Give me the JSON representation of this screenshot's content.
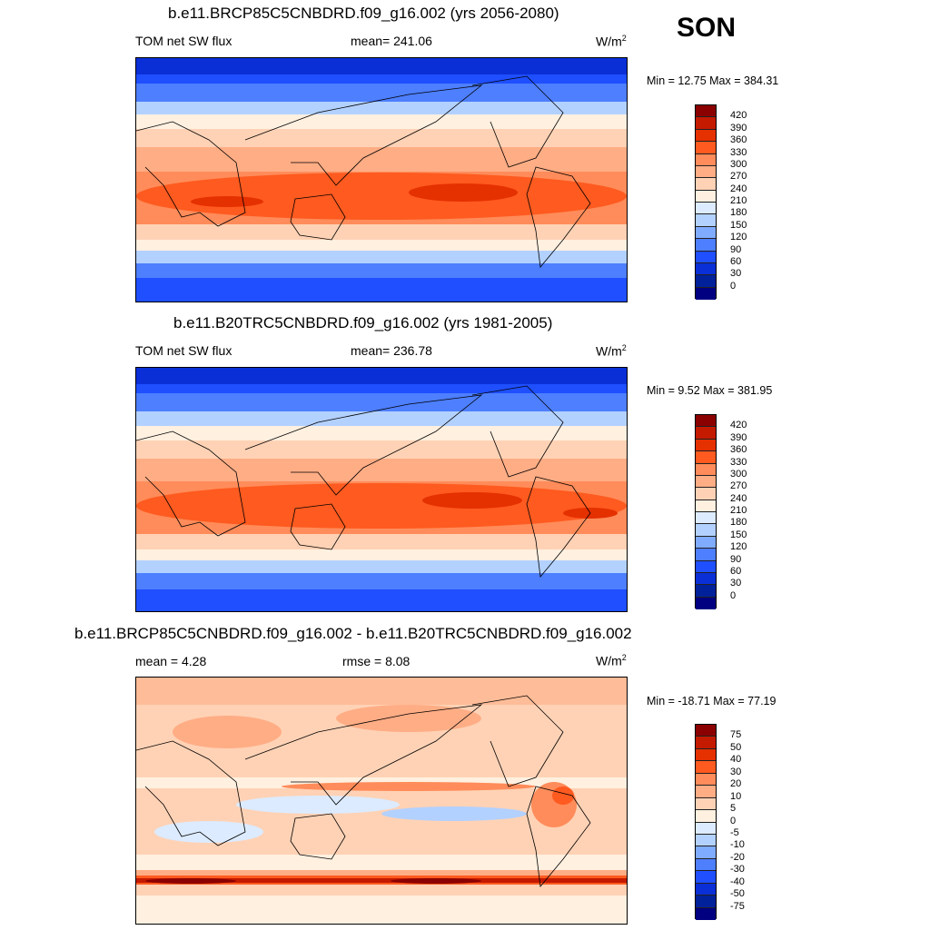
{
  "season": "SON",
  "panels": [
    {
      "title": "b.e11.BRCP85C5CNBDRD.f09_g16.002 (yrs 2056-2080)",
      "left_label": "TOM net SW flux",
      "mid_label": "mean= 241.06",
      "units": "W/m",
      "units_sup": "2",
      "minmax": "Min =  12.75 Max = 384.31",
      "colorbar": {
        "ticks": [
          "420",
          "390",
          "360",
          "330",
          "300",
          "270",
          "240",
          "210",
          "180",
          "150",
          "120",
          "90",
          "60",
          "30",
          "0"
        ],
        "colors": [
          "#8b0000",
          "#c41a00",
          "#e53000",
          "#ff5a1f",
          "#ff8c5a",
          "#ffad85",
          "#ffd2b5",
          "#fff0e0",
          "#dcebff",
          "#b3d1ff",
          "#80acff",
          "#4d7fff",
          "#1f4fff",
          "#0a2fd6",
          "#00219a",
          "#000080"
        ]
      }
    },
    {
      "title": "b.e11.B20TRC5CNBDRD.f09_g16.002 (yrs 1981-2005)",
      "left_label": "TOM net SW flux",
      "mid_label": "mean= 236.78",
      "units": "W/m",
      "units_sup": "2",
      "minmax": "Min =   9.52 Max = 381.95",
      "colorbar": {
        "ticks": [
          "420",
          "390",
          "360",
          "330",
          "300",
          "270",
          "240",
          "210",
          "180",
          "150",
          "120",
          "90",
          "60",
          "30",
          "0"
        ],
        "colors": [
          "#8b0000",
          "#c41a00",
          "#e53000",
          "#ff5a1f",
          "#ff8c5a",
          "#ffad85",
          "#ffd2b5",
          "#fff0e0",
          "#dcebff",
          "#b3d1ff",
          "#80acff",
          "#4d7fff",
          "#1f4fff",
          "#0a2fd6",
          "#00219a",
          "#000080"
        ]
      }
    },
    {
      "title": "b.e11.BRCP85C5CNBDRD.f09_g16.002 - b.e11.B20TRC5CNBDRD.f09_g16.002",
      "left_label": "mean =   4.28",
      "mid_label": "rmse =   8.08",
      "units": "W/m",
      "units_sup": "2",
      "minmax": "Min = -18.71 Max =  77.19",
      "colorbar": {
        "ticks": [
          "75",
          "50",
          "40",
          "30",
          "20",
          "10",
          "5",
          "0",
          "-5",
          "-10",
          "-20",
          "-30",
          "-40",
          "-50",
          "-75"
        ],
        "colors": [
          "#8b0000",
          "#c41a00",
          "#e53000",
          "#ff5a1f",
          "#ff8c5a",
          "#ffad85",
          "#ffd2b5",
          "#fff0e0",
          "#dcebff",
          "#b3d1ff",
          "#80acff",
          "#4d7fff",
          "#1f4fff",
          "#0a2fd6",
          "#00219a",
          "#000080"
        ]
      }
    }
  ]
}
